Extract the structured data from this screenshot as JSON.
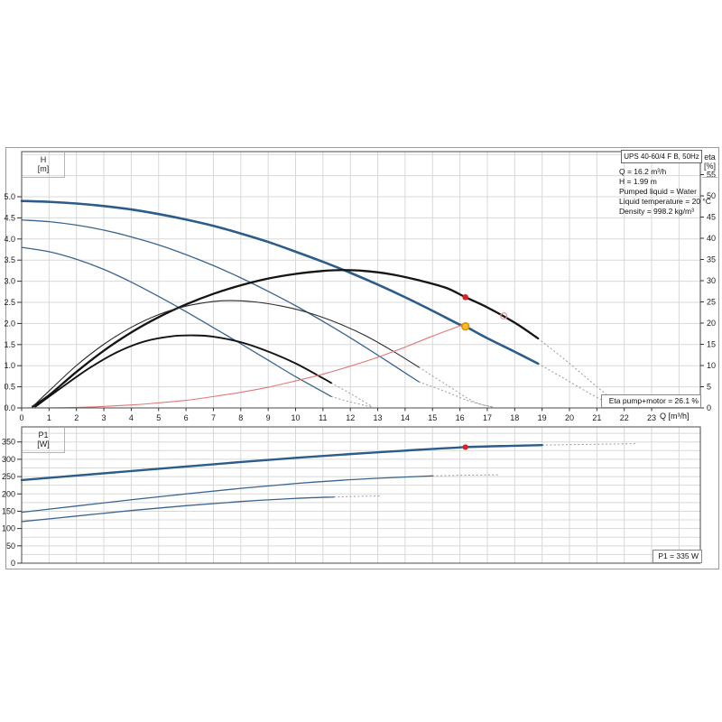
{
  "pump": {
    "title": "UPS 40-60/4 F B, 50Hz",
    "info_lines": [
      "Q = 16.2 m³/h",
      "H = 1.99 m",
      "Pumped liquid = Water",
      "Liquid temperature = 20 °C",
      "Density = 998.2 kg/m³"
    ]
  },
  "labels": {
    "eta_result": "Eta pump+motor = 26.1 %",
    "p1_result": "P1 = 335 W",
    "q_axis": "Q [m³/h]",
    "h_axis": [
      "H",
      "[m]"
    ],
    "eta_axis": [
      "eta",
      "[%]"
    ],
    "p1_axis": [
      "P1",
      "[W]"
    ]
  },
  "colors": {
    "blue": "#2b5c8a",
    "thin_blue": "#3a648f",
    "black": "#141414",
    "thin_black": "#2a2a2a",
    "red_curve": "#e37777",
    "dotted": "#9a9a9a",
    "marker_red": "#e01f1f",
    "marker_yellow_fill": "#ffc125",
    "marker_yellow_stroke": "#df8f00",
    "marker_hollow": "#ea9a9a",
    "grid": "#d8d8d8",
    "plot_border": "#4a4a4a"
  },
  "chart_data": [
    {
      "type": "line",
      "name": "qh-eta-chart",
      "x_ticks": [
        0,
        1,
        2,
        3,
        4,
        5,
        6,
        7,
        8,
        9,
        10,
        11,
        12,
        13,
        14,
        15,
        16,
        17,
        18,
        19,
        20,
        21,
        22,
        23
      ],
      "h_ticks": [
        "0.0",
        "0.5",
        "1.0",
        "1.5",
        "2.0",
        "2.5",
        "3.0",
        "3.5",
        "4.0",
        "4.5",
        "5.0"
      ],
      "eta_ticks": [
        0,
        5,
        10,
        15,
        20,
        25,
        30,
        35,
        40,
        45,
        50,
        55
      ],
      "xlabel": "Q [m³/h]",
      "ylabel_left": "H [m]",
      "ylabel_right": "eta [%]",
      "xlim": [
        0,
        24.75
      ],
      "ylim_left": [
        0,
        6.07
      ],
      "ylim_right": [
        0,
        60.5
      ],
      "series": [
        {
          "name": "head-speed3",
          "axis": "left",
          "color": "blue",
          "width": 2.6,
          "solid": [
            [
              0,
              4.9
            ],
            [
              1,
              4.88
            ],
            [
              2,
              4.84
            ],
            [
              3,
              4.78
            ],
            [
              4,
              4.7
            ],
            [
              5,
              4.59
            ],
            [
              6,
              4.46
            ],
            [
              7,
              4.31
            ],
            [
              8,
              4.13
            ],
            [
              9,
              3.93
            ],
            [
              10,
              3.7
            ],
            [
              11,
              3.46
            ],
            [
              12,
              3.2
            ],
            [
              13,
              2.92
            ],
            [
              14,
              2.62
            ],
            [
              15,
              2.3
            ],
            [
              16,
              1.97
            ],
            [
              16.2,
              1.93
            ],
            [
              17,
              1.65
            ],
            [
              18,
              1.33
            ],
            [
              18.85,
              1.05
            ]
          ],
          "dotted": [
            [
              18.85,
              1.05
            ],
            [
              19.8,
              0.7
            ],
            [
              20.8,
              0.32
            ],
            [
              21.7,
              0.02
            ]
          ]
        },
        {
          "name": "head-speed2",
          "axis": "left",
          "color": "thin_blue",
          "width": 1.3,
          "solid": [
            [
              0,
              4.45
            ],
            [
              1,
              4.41
            ],
            [
              2,
              4.33
            ],
            [
              3,
              4.21
            ],
            [
              4,
              4.05
            ],
            [
              5,
              3.86
            ],
            [
              6,
              3.63
            ],
            [
              7,
              3.37
            ],
            [
              8,
              3.08
            ],
            [
              9,
              2.76
            ],
            [
              10,
              2.42
            ],
            [
              11,
              2.05
            ],
            [
              12,
              1.66
            ],
            [
              13,
              1.25
            ],
            [
              14,
              0.83
            ],
            [
              14.5,
              0.62
            ]
          ],
          "dotted": [
            [
              14.5,
              0.62
            ],
            [
              15.5,
              0.38
            ],
            [
              16.4,
              0.15
            ],
            [
              17.2,
              0.02
            ]
          ]
        },
        {
          "name": "head-speed1",
          "axis": "left",
          "color": "thin_blue",
          "width": 1.3,
          "solid": [
            [
              0,
              3.8
            ],
            [
              1,
              3.7
            ],
            [
              2,
              3.52
            ],
            [
              3,
              3.28
            ],
            [
              4,
              2.98
            ],
            [
              5,
              2.64
            ],
            [
              6,
              2.28
            ],
            [
              7,
              1.9
            ],
            [
              8,
              1.52
            ],
            [
              9,
              1.13
            ],
            [
              10,
              0.74
            ],
            [
              11,
              0.38
            ],
            [
              11.3,
              0.27
            ]
          ],
          "dotted": [
            [
              11.3,
              0.27
            ],
            [
              12,
              0.14
            ],
            [
              12.8,
              0.02
            ]
          ]
        },
        {
          "name": "eta-speed3",
          "axis": "right",
          "color": "black",
          "width": 2.3,
          "solid": [
            [
              0.4,
              0.3
            ],
            [
              1,
              3.0
            ],
            [
              2,
              8.5
            ],
            [
              3,
              13.5
            ],
            [
              4,
              17.8
            ],
            [
              5,
              21.4
            ],
            [
              6,
              24.4
            ],
            [
              7,
              26.9
            ],
            [
              8,
              28.9
            ],
            [
              9,
              30.5
            ],
            [
              10,
              31.6
            ],
            [
              11,
              32.3
            ],
            [
              11.7,
              32.5
            ],
            [
              12.5,
              32.3
            ],
            [
              13.5,
              31.5
            ],
            [
              14.5,
              30.1
            ],
            [
              15.5,
              28.3
            ],
            [
              16.2,
              26.1
            ],
            [
              17,
              23.7
            ],
            [
              18,
              20.1
            ],
            [
              18.85,
              16.4
            ]
          ],
          "dotted": [
            [
              18.85,
              16.4
            ],
            [
              20,
              10.5
            ],
            [
              21,
              5.0
            ],
            [
              21.9,
              0.3
            ]
          ]
        },
        {
          "name": "eta-speed2",
          "axis": "right",
          "color": "thin_black",
          "width": 1.1,
          "solid": [
            [
              0.4,
              0.3
            ],
            [
              1,
              4.0
            ],
            [
              2,
              10.0
            ],
            [
              3,
              15.0
            ],
            [
              4,
              19.0
            ],
            [
              5,
              22.0
            ],
            [
              6,
              24.0
            ],
            [
              7,
              25.1
            ],
            [
              7.6,
              25.3
            ],
            [
              8.5,
              25.0
            ],
            [
              9.5,
              24.0
            ],
            [
              10.5,
              22.4
            ],
            [
              11.5,
              20.1
            ],
            [
              12.5,
              17.2
            ],
            [
              13.5,
              13.6
            ],
            [
              14.5,
              9.6
            ]
          ],
          "dotted": [
            [
              14.5,
              9.6
            ],
            [
              15.5,
              5.5
            ],
            [
              16.5,
              1.5
            ],
            [
              17.2,
              0.2
            ]
          ]
        },
        {
          "name": "eta-speed1",
          "axis": "right",
          "color": "black",
          "width": 1.9,
          "solid": [
            [
              0.5,
              0.3
            ],
            [
              1.5,
              5.0
            ],
            [
              2.5,
              9.5
            ],
            [
              3.5,
              13.2
            ],
            [
              4.5,
              15.7
            ],
            [
              5.5,
              16.9
            ],
            [
              6.3,
              17.1
            ],
            [
              7,
              16.8
            ],
            [
              8,
              15.5
            ],
            [
              9,
              13.3
            ],
            [
              10,
              10.5
            ],
            [
              11,
              7.0
            ],
            [
              11.3,
              5.9
            ]
          ],
          "dotted": [
            [
              11.3,
              5.9
            ],
            [
              12,
              3.4
            ],
            [
              12.8,
              0.3
            ]
          ]
        },
        {
          "name": "system-curve",
          "axis": "left",
          "color": "red_curve",
          "width": 1.1,
          "solid": [
            [
              0,
              0.0
            ],
            [
              2,
              0.013
            ],
            [
              4,
              0.07
            ],
            [
              5,
              0.12
            ],
            [
              6,
              0.18
            ],
            [
              7,
              0.27
            ],
            [
              8,
              0.37
            ],
            [
              9,
              0.49
            ],
            [
              10,
              0.64
            ],
            [
              11,
              0.8
            ],
            [
              12,
              0.99
            ],
            [
              13,
              1.2
            ],
            [
              14,
              1.44
            ],
            [
              15,
              1.7
            ],
            [
              16.2,
              1.99
            ]
          ],
          "dotted": []
        }
      ],
      "markers": [
        {
          "name": "eta-duty-dot",
          "kind": "dot",
          "axis": "right",
          "q": 16.2,
          "value": 26.1,
          "color": "marker_red",
          "r": 3.3
        },
        {
          "name": "eta-hollow-ring",
          "kind": "ring",
          "axis": "right",
          "q": 17.6,
          "value": 21.7,
          "color": "marker_hollow",
          "r": 3.4
        },
        {
          "name": "duty-point",
          "kind": "duty",
          "axis": "left",
          "q": 16.2,
          "value": 1.93,
          "r": 3.9
        }
      ]
    },
    {
      "type": "line",
      "name": "p1-chart",
      "p1_ticks": [
        0,
        50,
        100,
        150,
        200,
        250,
        300,
        350
      ],
      "ylabel_left": "P1 [W]",
      "xlim": [
        0,
        24.75
      ],
      "ylim_left": [
        0,
        394
      ],
      "series": [
        {
          "name": "p1-speed3",
          "axis": "left",
          "color": "blue",
          "width": 2.4,
          "solid": [
            [
              0,
              240
            ],
            [
              2,
              253
            ],
            [
              4,
              266
            ],
            [
              6,
              279
            ],
            [
              8,
              292
            ],
            [
              10,
              304
            ],
            [
              12,
              315
            ],
            [
              14,
              325
            ],
            [
              16.2,
              335
            ],
            [
              18,
              339
            ],
            [
              19,
              341
            ]
          ],
          "dotted": [
            [
              19,
              341
            ],
            [
              20.7,
              343
            ],
            [
              22.4,
              345
            ]
          ]
        },
        {
          "name": "p1-speed2",
          "axis": "left",
          "color": "thin_blue",
          "width": 1.3,
          "solid": [
            [
              0,
              147
            ],
            [
              2,
              165
            ],
            [
              4,
              183
            ],
            [
              6,
              200
            ],
            [
              8,
              216
            ],
            [
              10,
              230
            ],
            [
              12,
              241
            ],
            [
              13.5,
              247
            ],
            [
              15,
              252
            ]
          ],
          "dotted": [
            [
              15,
              252
            ],
            [
              16.2,
              254
            ],
            [
              17.4,
              255
            ]
          ]
        },
        {
          "name": "p1-speed1",
          "axis": "left",
          "color": "thin_blue",
          "width": 1.3,
          "solid": [
            [
              0,
              120
            ],
            [
              2,
              136
            ],
            [
              4,
              152
            ],
            [
              6,
              166
            ],
            [
              8,
              178
            ],
            [
              10,
              187
            ],
            [
              11.4,
              191
            ]
          ],
          "dotted": [
            [
              11.4,
              191
            ],
            [
              12.3,
              193
            ],
            [
              13.1,
              194
            ]
          ]
        }
      ],
      "markers": [
        {
          "name": "p1-duty-dot",
          "kind": "dot",
          "axis": "left",
          "q": 16.2,
          "value": 335,
          "color": "marker_red",
          "r": 3.1
        }
      ]
    }
  ]
}
